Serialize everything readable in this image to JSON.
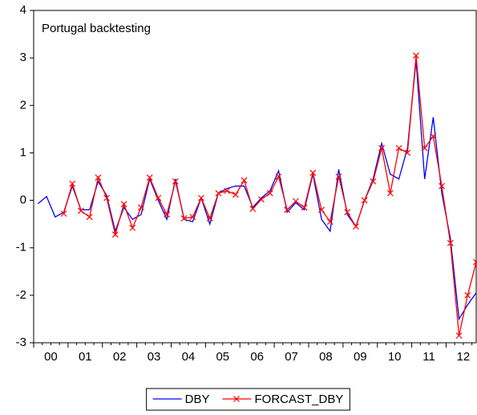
{
  "chart_data": {
    "type": "line",
    "title": "Portugal backtesting",
    "x": [
      0.125,
      0.375,
      0.625,
      0.875,
      1.125,
      1.375,
      1.625,
      1.875,
      2.125,
      2.375,
      2.625,
      2.875,
      3.125,
      3.375,
      3.625,
      3.875,
      4.125,
      4.375,
      4.625,
      4.875,
      5.125,
      5.375,
      5.625,
      5.875,
      6.125,
      6.375,
      6.625,
      6.875,
      7.125,
      7.375,
      7.625,
      7.875,
      8.125,
      8.375,
      8.625,
      8.875,
      9.125,
      9.375,
      9.625,
      9.875,
      10.125,
      10.375,
      10.625,
      10.875,
      11.125,
      11.375,
      11.625,
      11.875,
      12.125,
      12.375,
      12.625,
      12.875
    ],
    "series": [
      {
        "name": "DBY",
        "color": "#0000ff",
        "values": [
          -0.07,
          0.08,
          -0.35,
          -0.25,
          0.3,
          -0.2,
          -0.2,
          0.4,
          0.1,
          -0.65,
          -0.15,
          -0.4,
          -0.3,
          0.45,
          0.0,
          -0.4,
          0.45,
          -0.4,
          -0.45,
          0.05,
          -0.5,
          0.15,
          0.25,
          0.3,
          0.3,
          -0.15,
          0.05,
          0.2,
          0.62,
          -0.25,
          -0.05,
          -0.2,
          0.55,
          -0.4,
          -0.65,
          0.65,
          -0.3,
          -0.55,
          0.0,
          0.45,
          1.2,
          0.55,
          0.45,
          1.1,
          2.95,
          0.45,
          1.75,
          0.15,
          -0.8,
          -2.5,
          -2.2,
          -1.95
        ]
      },
      {
        "name": "FORCAST_DBY",
        "color": "#ff0000",
        "marker": "x",
        "values": [
          null,
          null,
          null,
          -0.28,
          0.35,
          -0.22,
          -0.35,
          0.48,
          0.05,
          -0.72,
          -0.08,
          -0.58,
          -0.15,
          0.48,
          0.05,
          -0.3,
          0.4,
          -0.38,
          -0.35,
          0.05,
          -0.38,
          0.15,
          0.2,
          0.12,
          0.42,
          -0.18,
          0.02,
          0.15,
          0.5,
          -0.2,
          -0.02,
          -0.15,
          0.58,
          -0.2,
          -0.45,
          0.5,
          -0.25,
          -0.55,
          0.0,
          0.4,
          1.1,
          0.15,
          1.1,
          1.0,
          3.05,
          1.1,
          1.35,
          0.3,
          -0.9,
          -2.85,
          -2.0,
          -1.3
        ]
      }
    ],
    "xlim": [
      0,
      12.875
    ],
    "xticks": [
      {
        "value": 0,
        "label": "00"
      },
      {
        "value": 1,
        "label": "01"
      },
      {
        "value": 2,
        "label": "02"
      },
      {
        "value": 3,
        "label": "03"
      },
      {
        "value": 4,
        "label": "04"
      },
      {
        "value": 5,
        "label": "05"
      },
      {
        "value": 6,
        "label": "06"
      },
      {
        "value": 7,
        "label": "07"
      },
      {
        "value": 8,
        "label": "08"
      },
      {
        "value": 9,
        "label": "09"
      },
      {
        "value": 10,
        "label": "10"
      },
      {
        "value": 11,
        "label": "11"
      },
      {
        "value": 12,
        "label": "12"
      }
    ],
    "ylim": [
      -3,
      4
    ],
    "yticks": [
      -3,
      -2,
      -1,
      0,
      1,
      2,
      3,
      4
    ],
    "grid": false,
    "legend": "bottom"
  }
}
